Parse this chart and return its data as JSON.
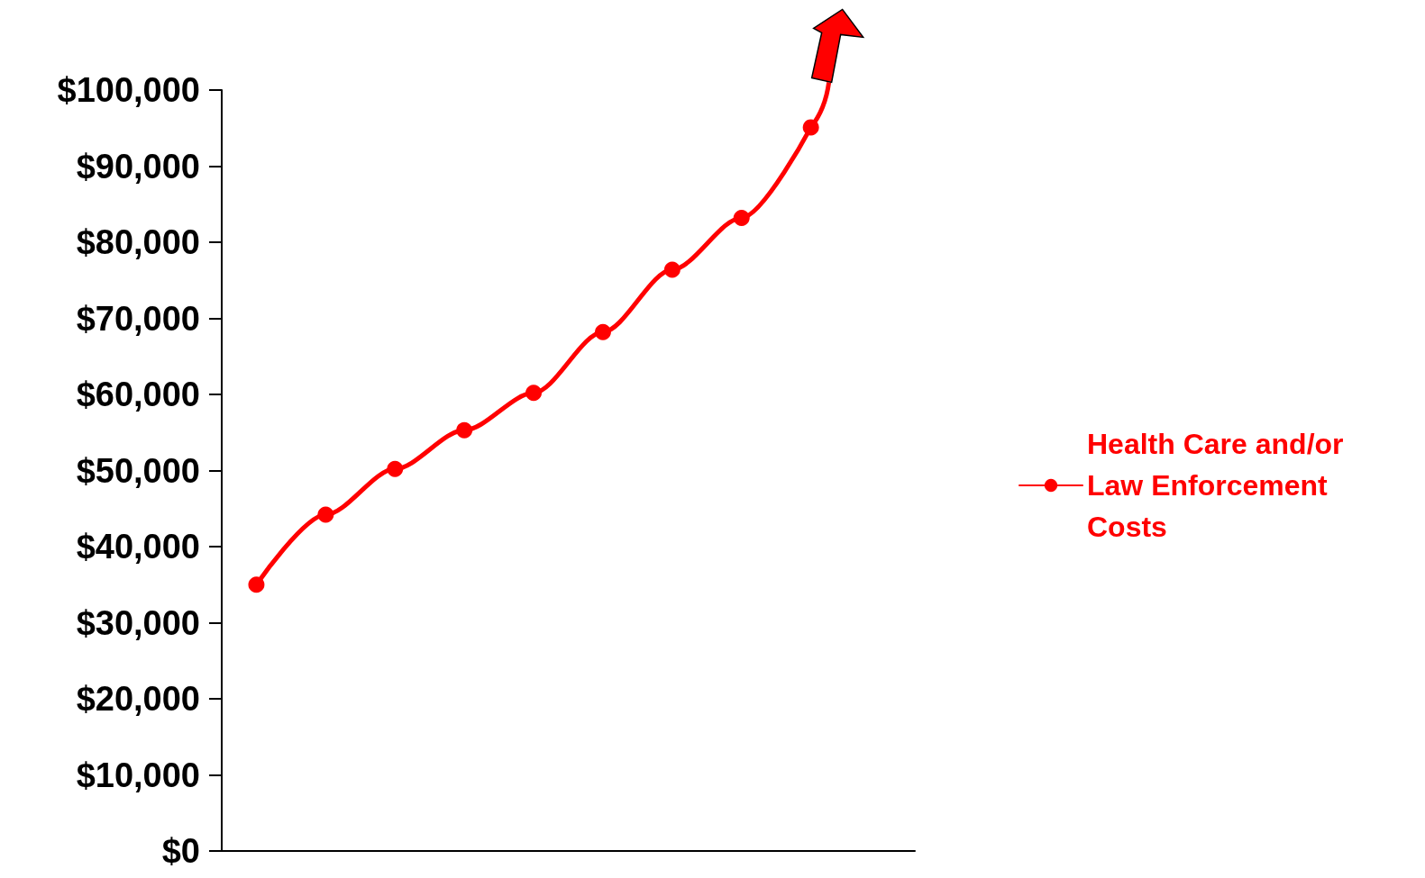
{
  "chart_data": {
    "type": "line",
    "categories": [
      null,
      null,
      null,
      null,
      null,
      null,
      null,
      null,
      null,
      null
    ],
    "series": [
      {
        "name": "Health Care and/or Law Enforcement Costs",
        "color": "#ff0000",
        "values": [
          35000,
          44200,
          50200,
          55300,
          60200,
          68200,
          76400,
          83200,
          95100,
          null
        ]
      }
    ],
    "ylim": [
      0,
      100000
    ],
    "yticks": [
      {
        "value": 0,
        "label": "$0"
      },
      {
        "value": 10000,
        "label": "$10,000"
      },
      {
        "value": 20000,
        "label": "$20,000"
      },
      {
        "value": 30000,
        "label": "$30,000"
      },
      {
        "value": 40000,
        "label": "$40,000"
      },
      {
        "value": 50000,
        "label": "$50,000"
      },
      {
        "value": 60000,
        "label": "$60,000"
      },
      {
        "value": 70000,
        "label": "$70,000"
      },
      {
        "value": 80000,
        "label": "$80,000"
      },
      {
        "value": 90000,
        "label": "$90,000"
      },
      {
        "value": 100000,
        "label": "$100,000"
      }
    ],
    "grid": false,
    "legend": "right",
    "marker": "circle",
    "line_style": "solid"
  }
}
